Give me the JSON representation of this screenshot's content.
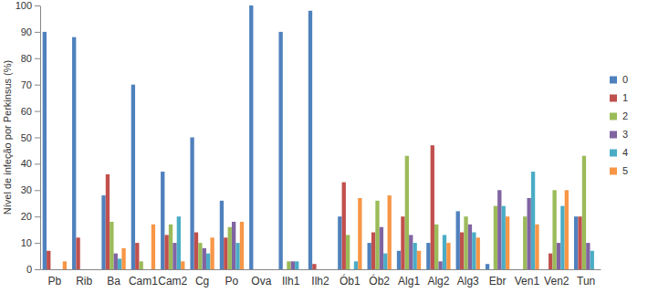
{
  "chart_data": {
    "type": "bar",
    "y_label": "Nível de infeção por Perkinsus (%)",
    "categories": [
      "Pb",
      "Rib",
      "Ba",
      "Cam1",
      "Cam2",
      "Cg",
      "Po",
      "Ova",
      "Ilh1",
      "Ilh2",
      "Ób1",
      "Ób2",
      "Alg1",
      "Alg2",
      "Alg3",
      "Ebr",
      "Ven1",
      "Ven2",
      "Tun"
    ],
    "series": [
      {
        "name": "0",
        "color": "#4f81bd",
        "values": [
          90,
          88,
          28,
          70,
          37,
          50,
          26,
          100,
          90,
          98,
          20,
          10,
          7,
          10,
          22,
          2,
          0,
          0,
          20
        ]
      },
      {
        "name": "1",
        "color": "#c0504d",
        "values": [
          7,
          12,
          36,
          10,
          13,
          14,
          12,
          0,
          0,
          2,
          33,
          14,
          20,
          47,
          14,
          0,
          0,
          6,
          20
        ]
      },
      {
        "name": "2",
        "color": "#9bbb59",
        "values": [
          0,
          0,
          18,
          3,
          17,
          10,
          16,
          0,
          3,
          0,
          13,
          26,
          43,
          17,
          20,
          24,
          20,
          30,
          43
        ]
      },
      {
        "name": "3",
        "color": "#8064a2",
        "values": [
          0,
          0,
          6,
          0,
          10,
          8,
          18,
          0,
          3,
          0,
          0,
          16,
          13,
          3,
          17,
          30,
          27,
          10,
          10
        ]
      },
      {
        "name": "4",
        "color": "#4bacc6",
        "values": [
          0,
          0,
          4,
          0,
          20,
          6,
          10,
          0,
          3,
          0,
          3,
          6,
          10,
          13,
          14,
          24,
          37,
          24,
          7
        ]
      },
      {
        "name": "5",
        "color": "#f79646",
        "values": [
          3,
          0,
          8,
          17,
          3,
          12,
          18,
          0,
          0,
          0,
          27,
          28,
          7,
          10,
          12,
          20,
          17,
          30,
          0
        ]
      }
    ],
    "ylim": [
      0,
      100
    ],
    "yticks": [
      0,
      10,
      20,
      30,
      40,
      50,
      60,
      70,
      80,
      90,
      100
    ],
    "grid": false,
    "legend": "right"
  }
}
